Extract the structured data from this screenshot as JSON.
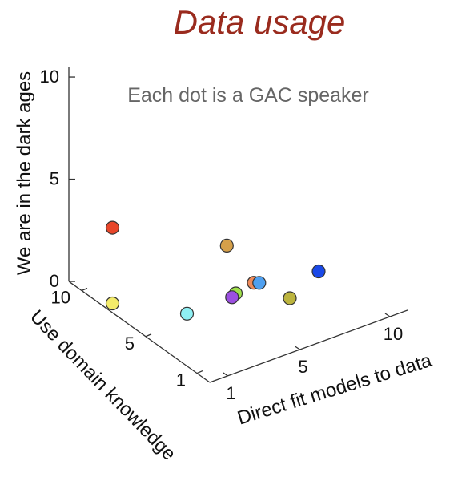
{
  "chart_data": {
    "type": "scatter",
    "title": "Data usage",
    "annotation": "Each dot is a GAC speaker",
    "x_label": "Direct fit models to data",
    "y_label": "Use domain knowledge",
    "z_label": "We are in the dark ages",
    "x_ticks": [
      "1",
      "5",
      "10"
    ],
    "y_ticks": [
      "1",
      "5",
      "10"
    ],
    "z_ticks": [
      "0",
      "5",
      "10"
    ],
    "x_range": [
      0,
      11
    ],
    "y_range": [
      0,
      11
    ],
    "z_range": [
      0,
      10
    ],
    "grid": false,
    "legend": "none",
    "points": [
      {
        "x": 1,
        "y": 9,
        "z": 3.2,
        "color": "#e8462a"
      },
      {
        "x": 1,
        "y": 9,
        "z": -0.5,
        "color": "#f4ec6a"
      },
      {
        "x": 3,
        "y": 6,
        "z": -0.3,
        "color": "#8ff0f4"
      },
      {
        "x": 4.5,
        "y": 5,
        "z": 3.0,
        "color": "#d6a04a"
      },
      {
        "x": 5,
        "y": 5,
        "z": 0.5,
        "color": "#a0e04a"
      },
      {
        "x": 5.5,
        "y": 6,
        "z": -0.3,
        "color": "#9b4fe0"
      },
      {
        "x": 6,
        "y": 5,
        "z": 0.7,
        "color": "#ee8a5a"
      },
      {
        "x": 6.3,
        "y": 5,
        "z": 0.6,
        "color": "#4fa0f0",
        "highlight": true
      },
      {
        "x": 8,
        "y": 5,
        "z": -0.7,
        "color": "#bcb43e"
      },
      {
        "x": 9.6,
        "y": 5,
        "z": 0.1,
        "color": "#1a49e8"
      }
    ]
  }
}
